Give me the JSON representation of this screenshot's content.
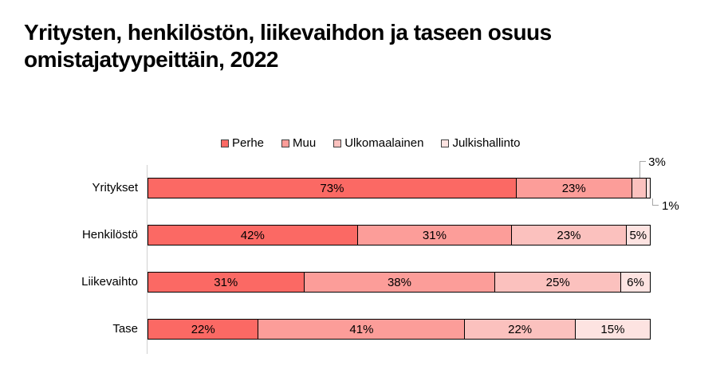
{
  "title": {
    "line1": "Yritysten, henkilöstön, liikevaihdon ja taseen osuus",
    "line2": "omistajatyypeittäin, 2022"
  },
  "legend": {
    "items": [
      {
        "label": "Perhe",
        "color": "#FB6964"
      },
      {
        "label": "Muu",
        "color": "#FC9D99"
      },
      {
        "label": "Ulkomaalainen",
        "color": "#FBC1BE"
      },
      {
        "label": "Julkishallinto",
        "color": "#FDE3E1"
      }
    ]
  },
  "chart_data": {
    "type": "bar",
    "orientation": "horizontal",
    "stacked": true,
    "unit": "%",
    "xlim": [
      0,
      100
    ],
    "grid": false,
    "legend_position": "top-center",
    "series_names": [
      "Perhe",
      "Muu",
      "Ulkomaalainen",
      "Julkishallinto"
    ],
    "series_colors": [
      "#FB6964",
      "#FC9D99",
      "#FBC1BE",
      "#FDE3E1"
    ],
    "categories": [
      "Yritykset",
      "Henkilöstö",
      "Liikevaihto",
      "Tase"
    ],
    "rows": [
      {
        "category": "Yritykset",
        "values": [
          73,
          23,
          3,
          1
        ],
        "labels": [
          "73%",
          "23%",
          "",
          ""
        ],
        "callouts": [
          {
            "text": "3%",
            "segment": 2,
            "direction": "up"
          },
          {
            "text": "1%",
            "segment": 3,
            "direction": "down"
          }
        ]
      },
      {
        "category": "Henkilöstö",
        "values": [
          42,
          31,
          23,
          5
        ],
        "labels": [
          "42%",
          "31%",
          "23%",
          "5%"
        ],
        "callouts": []
      },
      {
        "category": "Liikevaihto",
        "values": [
          31,
          38,
          25,
          6
        ],
        "labels": [
          "31%",
          "38%",
          "25%",
          "6%"
        ],
        "callouts": []
      },
      {
        "category": "Tase",
        "values": [
          22,
          41,
          22,
          15
        ],
        "labels": [
          "22%",
          "41%",
          "22%",
          "15%"
        ],
        "callouts": []
      }
    ]
  },
  "colors": {
    "segment_border": "#000000",
    "axis_line": "#d0d0d0",
    "callout_line": "#a6a6a6",
    "text": "#000000",
    "background": "#ffffff"
  }
}
